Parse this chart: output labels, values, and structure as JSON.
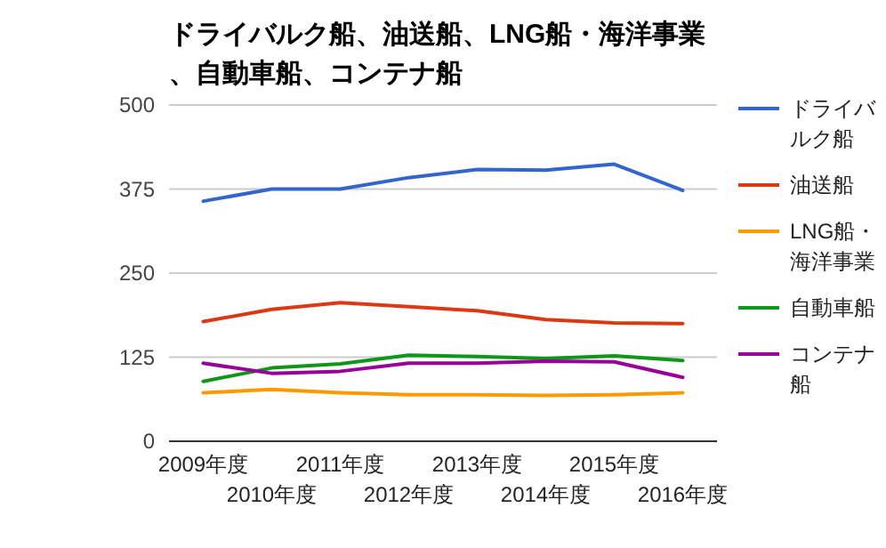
{
  "chart_data": {
    "type": "line",
    "title": "ドライバルク船、油送船、LNG船・海洋事業、自動車船、コンテナ船",
    "categories": [
      "2009年度",
      "2010年度",
      "2011年度",
      "2012年度",
      "2013年度",
      "2014年度",
      "2015年度",
      "2016年度"
    ],
    "ylim": [
      0,
      500
    ],
    "yticks": [
      0,
      125,
      250,
      375,
      500
    ],
    "grid": "y",
    "legend": "right",
    "marker": "none",
    "series": [
      {
        "name": "ドライバルク船",
        "color": "#3366cc",
        "values": [
          357,
          375,
          375,
          392,
          404,
          403,
          412,
          373
        ]
      },
      {
        "name": "油送船",
        "color": "#dc3912",
        "values": [
          178,
          196,
          206,
          200,
          194,
          181,
          176,
          175
        ]
      },
      {
        "name": "LNG船・海洋事業",
        "color": "#ff9900",
        "values": [
          72,
          77,
          72,
          69,
          69,
          68,
          69,
          72
        ]
      },
      {
        "name": "自動車船",
        "color": "#109618",
        "values": [
          89,
          109,
          115,
          128,
          126,
          123,
          127,
          120
        ]
      },
      {
        "name": "コンテナ船",
        "color": "#990099",
        "values": [
          116,
          101,
          104,
          116,
          116,
          119,
          118,
          95
        ]
      }
    ]
  }
}
